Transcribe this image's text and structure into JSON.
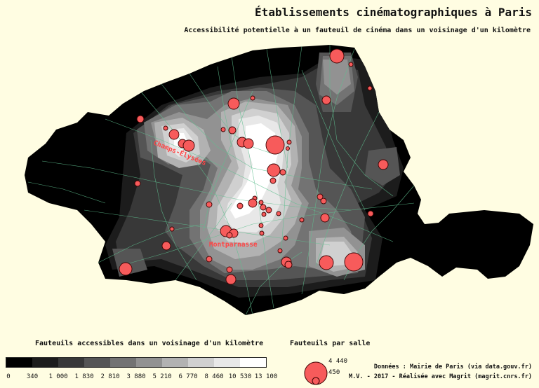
{
  "title": "Établissements cinématographiques à Paris",
  "subtitle": "Accessibilité potentielle à un fauteuil de cinéma dans un voisinage d'un kilomètre",
  "map_labels": {
    "champs": "Champs-Élysées",
    "montparnasse": "Montparnasse"
  },
  "legend": {
    "title": "Fauteuils accessibles dans un voisinage d'un kilomètre",
    "breaks": [
      "0",
      "340",
      "1 000",
      "1 830",
      "2 810",
      "3 880",
      "5 210",
      "6 770",
      "8 460",
      "10 530",
      "13 100"
    ],
    "colors": [
      "#000000",
      "#1c1c1c",
      "#383838",
      "#555555",
      "#737373",
      "#929292",
      "#b2b2b2",
      "#d0d0d0",
      "#e8e8e8",
      "#ffffff"
    ]
  },
  "size_legend": {
    "title": "Fauteuils par salle",
    "max_label": "4 440",
    "min_label": "450",
    "max_value": 4440,
    "min_value": 450
  },
  "credits": {
    "line1": "Données : Mairie de Paris (via data.gouv.fr)",
    "line2": "M.V. - 2017 - Réalisée avec Magrit (magrit.cnrs.fr)"
  },
  "colors": {
    "background": "#fffde2",
    "symbol_fill": "#f75b5b",
    "symbol_stroke": "#3a0000",
    "streets": "#5fbf8f",
    "label": "#ff4444"
  }
}
